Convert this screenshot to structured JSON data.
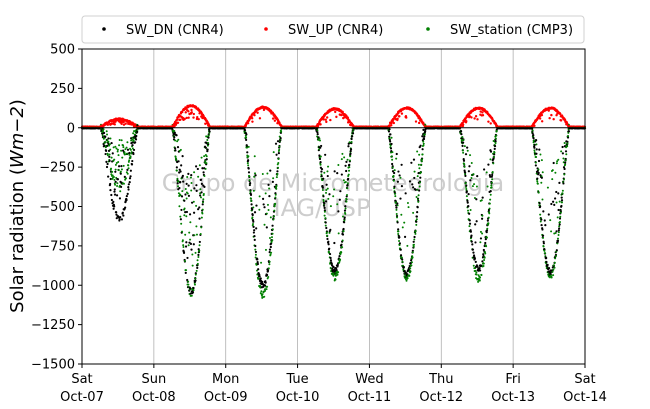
{
  "chart_data": {
    "type": "scatter",
    "title": "",
    "xlabel": "",
    "ylabel": "Solar radiation (Wm−2)",
    "ylabel_plain": "Solar radiation (",
    "ylabel_math": "Wm",
    "ylabel_exp": "−2",
    "ylabel_close": ")",
    "ylim": [
      -1500,
      500
    ],
    "yticks": [
      500,
      250,
      0,
      -250,
      -500,
      -750,
      -1000,
      -1250,
      -1500
    ],
    "ytick_labels": [
      "500",
      "250",
      "0",
      "−250",
      "−500",
      "−750",
      "−1000",
      "−1250",
      "−1500"
    ],
    "xlim_days": [
      0,
      7
    ],
    "x_ticks": [
      {
        "day": "Sat",
        "date": "Oct-07"
      },
      {
        "day": "Sun",
        "date": "Oct-08"
      },
      {
        "day": "Mon",
        "date": "Oct-09"
      },
      {
        "day": "Tue",
        "date": "Oct-10"
      },
      {
        "day": "Wed",
        "date": "Oct-11"
      },
      {
        "day": "Thu",
        "date": "Oct-12"
      },
      {
        "day": "Fri",
        "date": "Oct-13"
      },
      {
        "day": "Sat",
        "date": "Oct-14"
      }
    ],
    "grid": "vertical",
    "legend_position": "top",
    "zero_line": true,
    "watermark": [
      "Grupo de Micrometeorologia",
      "IAG/USP"
    ],
    "series": [
      {
        "name": "SW_DN (CNR4)",
        "color": "#000000",
        "daily_min": [
          -580,
          -1040,
          -1000,
          -910,
          -930,
          -900,
          -920
        ]
      },
      {
        "name": "SW_UP (CNR4)",
        "color": "#ff0000",
        "daily_max": [
          50,
          135,
          125,
          115,
          120,
          120,
          120
        ]
      },
      {
        "name": "SW_station (CMP3)",
        "color": "#008000",
        "daily_min": [
          -400,
          -1100,
          -1120,
          -1000,
          -1000,
          -1010,
          -990
        ]
      }
    ]
  }
}
